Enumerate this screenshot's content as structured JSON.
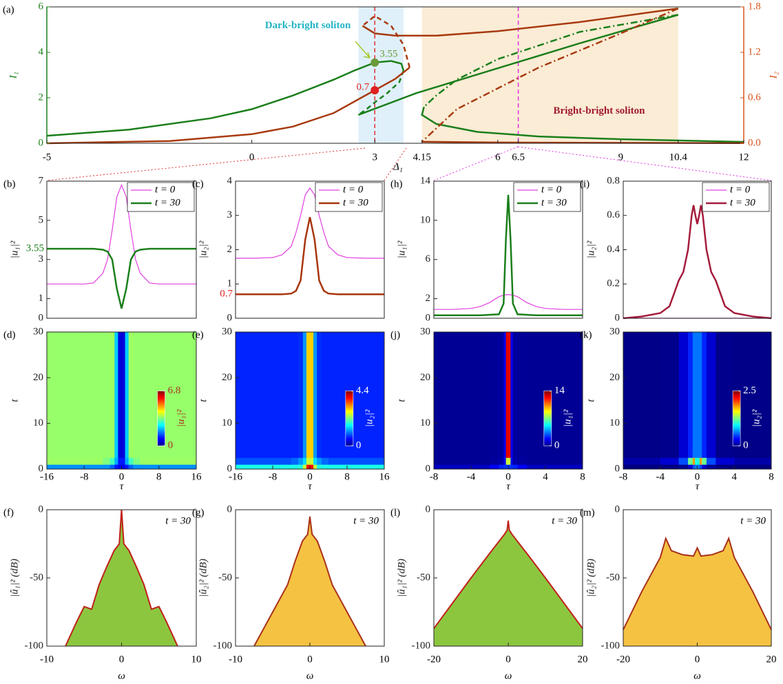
{
  "chart_data": [
    {
      "type": "line",
      "label": "(a)",
      "xlabel": "Δ₁",
      "ylabel": "I₁",
      "y2label": "I₂",
      "ylabel_color": "#1b7f1b",
      "y2label_color": "#d9541a",
      "xlim": [
        -5,
        12
      ],
      "xticks": [
        -5,
        0,
        3,
        4.15,
        6,
        6.5,
        9,
        10.4,
        12
      ],
      "ylim": [
        0,
        6
      ],
      "yticks": [
        0,
        2,
        4,
        6
      ],
      "y2lim": [
        0,
        1.8
      ],
      "y2ticks": [
        {
          "value": 0,
          "label": "0.0"
        },
        0.6,
        1.2,
        1.8
      ],
      "regions": [
        {
          "xlim": [
            2.6,
            3.7
          ],
          "color": "#dff0fb"
        },
        {
          "xlim": [
            4.15,
            10.4
          ],
          "color": "#fbecd5"
        }
      ],
      "vlines": [
        {
          "x": 3,
          "color": "#e03030"
        },
        {
          "x": 6.5,
          "color": "#e030e0"
        }
      ],
      "points": [
        {
          "x": 3,
          "value": 3.55,
          "color": "#6a9a3a"
        },
        {
          "x": 3,
          "value": 0.7,
          "axis": "y2",
          "color": "#e02020"
        }
      ],
      "annotations": [
        {
          "text": "Dark-bright soliton",
          "color": "#22b4c4"
        },
        {
          "text": "Bright-bright soliton",
          "color": "#a01830"
        }
      ],
      "series": [
        {
          "color": "#1b7f1b",
          "style": "solid",
          "x": [
            -5,
            -3,
            -1,
            0,
            1,
            2,
            2.5,
            3,
            3.4,
            3.65,
            3.7
          ],
          "values": [
            0.33,
            0.6,
            1.1,
            1.5,
            2.1,
            2.8,
            3.2,
            3.55,
            3.62,
            3.5,
            3.2
          ]
        },
        {
          "color": "#1b7f1b",
          "style": "dashed",
          "x": [
            3.7,
            3.6,
            3.3,
            3.0,
            2.8,
            2.6
          ],
          "values": [
            3.2,
            2.7,
            2.2,
            1.8,
            1.5,
            1.25
          ]
        },
        {
          "color": "#1b7f1b",
          "style": "solid",
          "x": [
            2.6,
            4,
            6,
            8,
            10.4
          ],
          "values": [
            1.25,
            2.2,
            3.3,
            4.4,
            5.65
          ]
        },
        {
          "color": "#1b7f1b",
          "style": "dashdot",
          "x": [
            10.4,
            8,
            6,
            5,
            4.5,
            4.2
          ],
          "values": [
            5.65,
            4.9,
            3.7,
            2.8,
            2.1,
            1.6
          ]
        },
        {
          "color": "#1b7f1b",
          "style": "solid",
          "x": [
            4.2,
            4.15,
            4.5,
            5.5,
            7,
            9,
            12
          ],
          "values": [
            1.6,
            1.25,
            0.85,
            0.5,
            0.3,
            0.18,
            0.06
          ]
        },
        {
          "color": "#a83a10",
          "style": "solid",
          "axis": "y2",
          "x": [
            -5,
            -2,
            0,
            1,
            2,
            3,
            3.5,
            3.85
          ],
          "values": [
            0,
            0.03,
            0.12,
            0.22,
            0.4,
            0.7,
            0.85,
            1.0
          ]
        },
        {
          "color": "#a83a10",
          "style": "dashed",
          "axis": "y2",
          "x": [
            3.85,
            3.7,
            3.4,
            3.0,
            2.7
          ],
          "values": [
            1.0,
            1.3,
            1.55,
            1.68,
            1.55
          ]
        },
        {
          "color": "#a83a10",
          "style": "solid",
          "axis": "y2",
          "x": [
            2.7,
            3.0,
            3.5,
            4.5,
            6,
            8,
            10.4
          ],
          "values": [
            1.55,
            1.45,
            1.42,
            1.42,
            1.48,
            1.6,
            1.78
          ]
        },
        {
          "color": "#a83a10",
          "style": "dashdot",
          "axis": "y2",
          "x": [
            10.4,
            9,
            7,
            5,
            4.15
          ],
          "values": [
            1.78,
            1.45,
            1.0,
            0.45,
            0.02
          ]
        },
        {
          "color": "#a83a10",
          "style": "solid",
          "axis": "y2",
          "x": [
            4.15,
            6,
            9,
            12
          ],
          "values": [
            0.02,
            0.01,
            0.005,
            0.003
          ]
        }
      ]
    },
    {
      "type": "line",
      "label": "(b)",
      "ylabel": "|u₁|²",
      "xlim": [
        -16,
        16
      ],
      "ylim": [
        0,
        7
      ],
      "yticks": [
        0,
        1,
        3,
        5,
        7
      ],
      "level": {
        "value": 3.55,
        "color": "#1b7f1b"
      },
      "legend": "upper right",
      "x": [
        -16,
        -12,
        -8,
        -6,
        -4,
        -3,
        -2,
        -1,
        0,
        1,
        2,
        3,
        4,
        6,
        8,
        12,
        16
      ],
      "series": [
        {
          "name": "t = 0",
          "color": "#e040e0",
          "width": 1.2,
          "values": [
            1.75,
            1.75,
            1.75,
            1.8,
            2.3,
            3.0,
            4.5,
            6.2,
            6.8,
            6.2,
            4.5,
            3.0,
            2.3,
            1.8,
            1.75,
            1.75,
            1.75
          ]
        },
        {
          "name": "t = 30",
          "color": "#1b7f1b",
          "width": 2.5,
          "values": [
            3.55,
            3.55,
            3.55,
            3.55,
            3.5,
            3.4,
            3.0,
            1.5,
            0.5,
            1.5,
            3.0,
            3.4,
            3.5,
            3.55,
            3.55,
            3.55,
            3.55
          ]
        }
      ]
    },
    {
      "type": "line",
      "label": "(c)",
      "ylabel": "|u₂|²",
      "xlim": [
        -16,
        16
      ],
      "ylim": [
        0,
        4
      ],
      "yticks": [
        0,
        1,
        2,
        3,
        4
      ],
      "level": {
        "value": 0.7,
        "color": "#e02020"
      },
      "legend": "upper right",
      "x": [
        -16,
        -12,
        -8,
        -6,
        -4,
        -3,
        -2,
        -1,
        0,
        1,
        2,
        3,
        4,
        6,
        8,
        12,
        16
      ],
      "series": [
        {
          "name": "t = 0",
          "color": "#e040e0",
          "width": 1.2,
          "values": [
            1.75,
            1.75,
            1.77,
            1.85,
            2.1,
            2.5,
            3.0,
            3.6,
            3.8,
            3.6,
            3.0,
            2.5,
            2.1,
            1.85,
            1.77,
            1.75,
            1.75
          ]
        },
        {
          "name": "t = 30",
          "color": "#a8350c",
          "width": 2.5,
          "values": [
            0.7,
            0.7,
            0.7,
            0.7,
            0.72,
            0.8,
            1.1,
            2.3,
            2.95,
            2.3,
            1.1,
            0.8,
            0.72,
            0.7,
            0.7,
            0.7,
            0.7
          ]
        }
      ]
    },
    {
      "type": "line",
      "label": "(h)",
      "ylabel": "|u₁|²",
      "xlim": [
        -8,
        8
      ],
      "ylim": [
        0,
        14
      ],
      "yticks": [
        0,
        2,
        6,
        10,
        14
      ],
      "legend": "upper right",
      "x": [
        -8,
        -6,
        -4,
        -3,
        -2,
        -1,
        -0.5,
        -0.25,
        0,
        0.25,
        0.5,
        1,
        2,
        3,
        4,
        6,
        8
      ],
      "series": [
        {
          "name": "t = 0",
          "color": "#e040e0",
          "width": 1.2,
          "values": [
            0.9,
            0.9,
            1.0,
            1.2,
            1.6,
            2.2,
            2.35,
            2.4,
            2.4,
            2.4,
            2.35,
            2.2,
            1.6,
            1.2,
            1.0,
            0.9,
            0.9
          ]
        },
        {
          "name": "t = 30",
          "color": "#1b7f1b",
          "width": 2.5,
          "values": [
            0.3,
            0.3,
            0.3,
            0.3,
            0.35,
            0.4,
            1.5,
            8,
            12.6,
            8,
            1.5,
            0.4,
            0.35,
            0.3,
            0.3,
            0.3,
            0.3
          ]
        }
      ]
    },
    {
      "type": "line",
      "label": "(i)",
      "ylabel": "|u₂|²",
      "xlim": [
        -8,
        8
      ],
      "ylim": [
        0,
        0.8
      ],
      "yticks": [
        0,
        0.2,
        0.4,
        0.6,
        0.8
      ],
      "legend": "upper right",
      "x": [
        -8,
        -6,
        -4,
        -3,
        -2,
        -1.5,
        -1,
        -0.6,
        -0.4,
        -0.2,
        0,
        0.2,
        0.4,
        0.6,
        1,
        1.5,
        2,
        3,
        4,
        6,
        8
      ],
      "series": [
        {
          "name": "t = 0",
          "color": "#e040e0",
          "width": 1.2,
          "values": [
            0,
            0,
            0,
            0,
            0,
            0,
            0,
            0,
            0,
            0,
            0,
            0,
            0,
            0,
            0,
            0,
            0,
            0,
            0,
            0,
            0
          ]
        },
        {
          "name": "t = 30",
          "color": "#a51b3b",
          "width": 2.5,
          "values": [
            0,
            0.01,
            0.03,
            0.07,
            0.22,
            0.27,
            0.4,
            0.6,
            0.66,
            0.6,
            0.55,
            0.6,
            0.66,
            0.6,
            0.4,
            0.27,
            0.22,
            0.07,
            0.03,
            0.01,
            0
          ]
        }
      ]
    },
    {
      "type": "heatmap",
      "label": "(d)",
      "xlabel": "τ",
      "ylabel": "t",
      "xlim": [
        -16,
        16
      ],
      "xticks": [
        -16,
        -8,
        0,
        8,
        16
      ],
      "ylim": [
        0,
        30
      ],
      "yticks": [
        0,
        10,
        20,
        30
      ],
      "clim": [
        0,
        6.8
      ],
      "cticks": [
        0,
        6.8
      ],
      "clabel": "|u₁|²",
      "ctick_color": "#b03020",
      "x_edges": [
        -16,
        -8,
        -4,
        -2.5,
        -1.5,
        -0.75,
        0.75,
        1.5,
        2.5,
        4,
        8,
        16
      ],
      "y_edges": [
        0,
        1,
        2.5,
        30
      ],
      "z": [
        [
          1.8,
          1.8,
          1.8,
          1.5,
          1.0,
          0.8,
          1.0,
          1.5,
          1.8,
          1.8,
          1.8
        ],
        [
          3.6,
          3.6,
          3.4,
          3.0,
          2.0,
          1.0,
          2.0,
          3.0,
          3.4,
          3.6,
          3.6
        ],
        [
          3.55,
          3.55,
          3.55,
          3.6,
          2.2,
          0.6,
          2.2,
          3.6,
          3.55,
          3.55,
          3.55
        ]
      ]
    },
    {
      "type": "heatmap",
      "label": "(e)",
      "xlabel": "τ",
      "ylabel": "t",
      "xlim": [
        -16,
        16
      ],
      "xticks": [
        -16,
        -8,
        0,
        8,
        16
      ],
      "ylim": [
        0,
        30
      ],
      "yticks": [
        0,
        10,
        20,
        30
      ],
      "clim": [
        0,
        4.4
      ],
      "cticks": [
        0,
        4.4
      ],
      "clabel": "|u₂|²",
      "ctick_color": "#ffffff",
      "x_edges": [
        -16,
        -8,
        -4,
        -2.5,
        -1.5,
        -0.75,
        0.75,
        1.5,
        2.5,
        4,
        8,
        16
      ],
      "y_edges": [
        0,
        1,
        2.5,
        30
      ],
      "z": [
        [
          1.75,
          1.75,
          1.75,
          1.8,
          2.5,
          3.8,
          2.5,
          1.8,
          1.75,
          1.75,
          1.75
        ],
        [
          0.9,
          0.9,
          1.0,
          1.2,
          1.5,
          2.5,
          1.5,
          1.2,
          1.0,
          0.9,
          0.9
        ],
        [
          0.7,
          0.7,
          0.7,
          0.75,
          1.2,
          2.95,
          1.2,
          0.75,
          0.7,
          0.7,
          0.7
        ]
      ]
    },
    {
      "type": "heatmap",
      "label": "(j)",
      "xlabel": "τ",
      "ylabel": "t",
      "xlim": [
        -8,
        8
      ],
      "xticks": [
        -8,
        -4,
        0,
        4,
        8
      ],
      "ylim": [
        0,
        30
      ],
      "yticks": [
        0,
        10,
        20,
        30
      ],
      "clim": [
        0,
        14
      ],
      "cticks": [
        0,
        14
      ],
      "clabel": "|u₁|²",
      "ctick_color": "#ffffff",
      "x_edges": [
        -8,
        -4,
        -2,
        -1,
        -0.5,
        -0.25,
        0.25,
        0.5,
        1,
        2,
        4,
        8
      ],
      "y_edges": [
        0,
        1,
        2.5,
        30
      ],
      "z": [
        [
          0.9,
          0.9,
          1.6,
          2.2,
          2.4,
          2.4,
          2.4,
          2.2,
          1.6,
          0.9,
          0.9
        ],
        [
          0.3,
          0.3,
          0.4,
          0.6,
          1.5,
          8,
          1.5,
          0.6,
          0.4,
          0.3,
          0.3
        ],
        [
          0.3,
          0.3,
          0.35,
          0.4,
          1.5,
          12.6,
          1.5,
          0.4,
          0.35,
          0.3,
          0.3
        ]
      ]
    },
    {
      "type": "heatmap",
      "label": "(k)",
      "xlabel": "τ",
      "ylabel": "t",
      "xlim": [
        -8,
        8
      ],
      "xticks": [
        -8,
        -4,
        0,
        4,
        8
      ],
      "ylim": [
        0,
        30
      ],
      "yticks": [
        0,
        10,
        20,
        30
      ],
      "clim": [
        0,
        2.5
      ],
      "cticks": [
        0,
        2.5
      ],
      "clabel": "|u₂|²",
      "ctick_color": "#ffffff",
      "x_edges": [
        -8,
        -4,
        -2,
        -1,
        -0.5,
        -0.25,
        0.25,
        0.5,
        1,
        2,
        4,
        8
      ],
      "y_edges": [
        0,
        1,
        2.5,
        30
      ],
      "z": [
        [
          0,
          0,
          0.05,
          0.2,
          0.5,
          0.6,
          0.5,
          0.2,
          0.05,
          0,
          0
        ],
        [
          0.1,
          0.2,
          0.5,
          1.2,
          1.8,
          1.0,
          1.8,
          1.2,
          0.5,
          0.2,
          0.1
        ],
        [
          0.02,
          0.03,
          0.2,
          0.4,
          0.6,
          0.6,
          0.6,
          0.4,
          0.2,
          0.03,
          0.02
        ]
      ]
    },
    {
      "type": "area",
      "label": "(f)",
      "xlabel": "ω",
      "ylabel": "|û₁|² (dB)",
      "annotation": "t = 30",
      "xlim": [
        -10,
        10
      ],
      "xticks": [
        -10,
        0,
        10
      ],
      "ylim": [
        -100,
        0
      ],
      "yticks": [
        -100,
        -50,
        0
      ],
      "color": "#8cc63f",
      "line_color": "#c0201a",
      "x": [
        -7.5,
        -6,
        -5,
        -4,
        -3,
        -2,
        -1,
        -0.3,
        0,
        0.3,
        1,
        2,
        3,
        4,
        5,
        6,
        7.5
      ],
      "values": [
        -100,
        -82,
        -71,
        -73,
        -55,
        -42,
        -30,
        -25,
        0,
        -25,
        -30,
        -42,
        -55,
        -73,
        -71,
        -82,
        -100
      ]
    },
    {
      "type": "area",
      "label": "(g)",
      "xlabel": "ω",
      "ylabel": "|û₂|² (dB)",
      "annotation": "t = 30",
      "xlim": [
        -10,
        10
      ],
      "xticks": [
        -10,
        0,
        10
      ],
      "ylim": [
        -100,
        0
      ],
      "yticks": [
        -100,
        -50,
        0
      ],
      "color": "#f5c242",
      "line_color": "#a8301a",
      "x": [
        -7.5,
        -6,
        -4,
        -3,
        -2,
        -1,
        -0.3,
        0,
        0.3,
        1,
        2,
        3,
        4,
        6,
        7.5
      ],
      "values": [
        -100,
        -85,
        -65,
        -55,
        -38,
        -23,
        -18,
        -5,
        -18,
        -23,
        -38,
        -55,
        -65,
        -85,
        -100
      ]
    },
    {
      "type": "area",
      "label": "(l)",
      "xlabel": "ω",
      "ylabel": "|û₁|² (dB)",
      "annotation": "t = 30",
      "xlim": [
        -20,
        20
      ],
      "xticks": [
        -20,
        0,
        20
      ],
      "ylim": [
        -100,
        0
      ],
      "yticks": [
        -100,
        -50,
        0
      ],
      "color": "#8cc63f",
      "line_color": "#c0201a",
      "x": [
        -20,
        -10,
        -5,
        -1,
        -0.3,
        0,
        0.3,
        1,
        5,
        10,
        20
      ],
      "values": [
        -87,
        -50,
        -32,
        -18,
        -15,
        -8,
        -15,
        -18,
        -32,
        -50,
        -87
      ]
    },
    {
      "type": "area",
      "label": "(m)",
      "xlabel": "ω",
      "ylabel": "|û₂|² (dB)",
      "annotation": "t = 30",
      "xlim": [
        -20,
        20
      ],
      "xticks": [
        -20,
        0,
        20
      ],
      "ylim": [
        -100,
        0
      ],
      "yticks": [
        -100,
        -50,
        0
      ],
      "color": "#f5c242",
      "line_color": "#a8301a",
      "x": [
        -20,
        -15,
        -10,
        -8.5,
        -7,
        -4,
        -1,
        0,
        1,
        4,
        7,
        8.5,
        10,
        15,
        20
      ],
      "values": [
        -88,
        -60,
        -35,
        -21,
        -30,
        -33,
        -34,
        -28,
        -34,
        -33,
        -30,
        -21,
        -35,
        -60,
        -88
      ]
    }
  ]
}
